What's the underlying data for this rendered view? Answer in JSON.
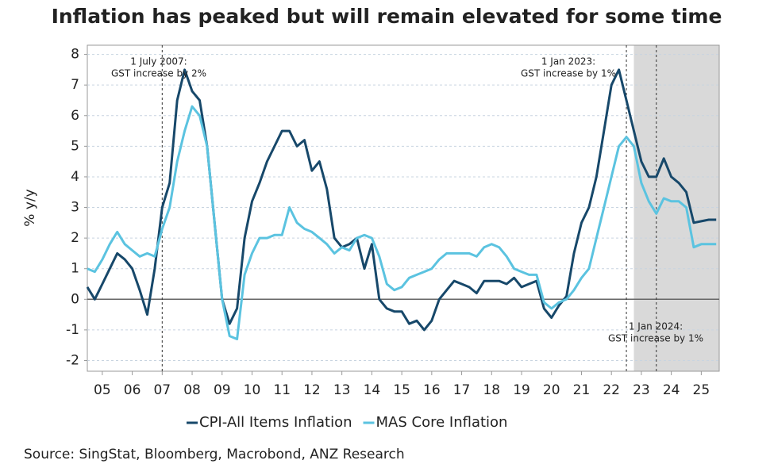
{
  "chart_data": {
    "type": "line",
    "title": "Inflation has peaked but will remain elevated for some time",
    "y_label": "% y/y",
    "source": "Source: SingStat, Bloomberg, Macrobond, ANZ Research",
    "x": [
      2005,
      2005.25,
      2005.5,
      2005.75,
      2006,
      2006.25,
      2006.5,
      2006.75,
      2007,
      2007.25,
      2007.5,
      2007.75,
      2008,
      2008.25,
      2008.5,
      2008.75,
      2009,
      2009.25,
      2009.5,
      2009.75,
      2010,
      2010.25,
      2010.5,
      2010.75,
      2011,
      2011.25,
      2011.5,
      2011.75,
      2012,
      2012.25,
      2012.5,
      2012.75,
      2013,
      2013.25,
      2013.5,
      2013.75,
      2014,
      2014.25,
      2014.5,
      2014.75,
      2015,
      2015.25,
      2015.5,
      2015.75,
      2016,
      2016.25,
      2016.5,
      2016.75,
      2017,
      2017.25,
      2017.5,
      2017.75,
      2018,
      2018.25,
      2018.5,
      2018.75,
      2019,
      2019.25,
      2019.5,
      2019.75,
      2020,
      2020.25,
      2020.5,
      2020.75,
      2021,
      2021.25,
      2021.5,
      2021.75,
      2022,
      2022.25,
      2022.5,
      2022.75,
      2023,
      2023.25,
      2023.5,
      2023.75,
      2024,
      2024.25,
      2024.5,
      2024.75,
      2025,
      2025.25,
      2025.5,
      2025.75,
      2026
    ],
    "series": [
      {
        "name": "CPI-All Items Inflation",
        "color": "#17486a",
        "values": [
          0.4,
          0.0,
          0.5,
          1.0,
          1.5,
          1.3,
          1.0,
          0.3,
          -0.5,
          1.0,
          3.0,
          3.8,
          6.5,
          7.5,
          6.8,
          6.5,
          5.0,
          2.5,
          0.0,
          -0.8,
          -0.3,
          2.0,
          3.2,
          3.8,
          4.5,
          5.0,
          5.5,
          5.5,
          5.0,
          5.2,
          4.2,
          4.5,
          3.6,
          2.0,
          1.7,
          1.8,
          2.0,
          1.0,
          1.8,
          0.0,
          -0.3,
          -0.4,
          -0.4,
          -0.8,
          -0.7,
          -1.0,
          -0.7,
          0.0,
          0.3,
          0.6,
          0.5,
          0.4,
          0.2,
          0.6,
          0.6,
          0.6,
          0.5,
          0.7,
          0.4,
          0.5,
          0.6,
          -0.3,
          -0.6,
          -0.2,
          0.1,
          1.5,
          2.5,
          3.0,
          4.0,
          5.5,
          7.0,
          7.5,
          6.5,
          5.5,
          4.5,
          4.0,
          4.0,
          4.6,
          4.0,
          3.8,
          3.5,
          2.5,
          2.55,
          2.6,
          2.6
        ]
      },
      {
        "name": "MAS Core Inflation",
        "color": "#5bc3e0",
        "values": [
          1.0,
          0.9,
          1.3,
          1.8,
          2.2,
          1.8,
          1.6,
          1.4,
          1.5,
          1.4,
          2.3,
          3.0,
          4.5,
          5.5,
          6.3,
          6.0,
          5.0,
          2.5,
          0.0,
          -1.2,
          -1.3,
          0.8,
          1.5,
          2.0,
          2.0,
          2.1,
          2.1,
          3.0,
          2.5,
          2.3,
          2.2,
          2.0,
          1.8,
          1.5,
          1.7,
          1.6,
          2.0,
          2.1,
          2.0,
          1.4,
          0.5,
          0.3,
          0.4,
          0.7,
          0.8,
          0.9,
          1.0,
          1.3,
          1.5,
          1.5,
          1.5,
          1.5,
          1.4,
          1.7,
          1.8,
          1.7,
          1.4,
          1.0,
          0.9,
          0.8,
          0.8,
          -0.1,
          -0.3,
          -0.1,
          0.0,
          0.3,
          0.7,
          1.0,
          2.0,
          3.0,
          4.0,
          5.0,
          5.3,
          5.0,
          3.8,
          3.2,
          2.8,
          3.3,
          3.2,
          3.2,
          3.0,
          1.7,
          1.8,
          1.8,
          1.8
        ]
      }
    ],
    "xlim": [
      2005,
      2026.1
    ],
    "xticks": [
      {
        "value": 2005.5,
        "label": "05"
      },
      {
        "value": 2006.5,
        "label": "06"
      },
      {
        "value": 2007.5,
        "label": "07"
      },
      {
        "value": 2008.5,
        "label": "08"
      },
      {
        "value": 2009.5,
        "label": "09"
      },
      {
        "value": 2010.5,
        "label": "10"
      },
      {
        "value": 2011.5,
        "label": "11"
      },
      {
        "value": 2012.5,
        "label": "12"
      },
      {
        "value": 2013.5,
        "label": "13"
      },
      {
        "value": 2014.5,
        "label": "14"
      },
      {
        "value": 2015.5,
        "label": "15"
      },
      {
        "value": 2016.5,
        "label": "16"
      },
      {
        "value": 2017.5,
        "label": "17"
      },
      {
        "value": 2018.5,
        "label": "18"
      },
      {
        "value": 2019.5,
        "label": "19"
      },
      {
        "value": 2020.5,
        "label": "20"
      },
      {
        "value": 2021.5,
        "label": "21"
      },
      {
        "value": 2022.5,
        "label": "22"
      },
      {
        "value": 2023.5,
        "label": "23"
      },
      {
        "value": 2024.5,
        "label": "24"
      },
      {
        "value": 2025.5,
        "label": "25"
      }
    ],
    "ylim": [
      -2.35,
      8.3
    ],
    "yticks": [
      -2,
      -1,
      0,
      1,
      2,
      3,
      4,
      5,
      6,
      7,
      8
    ],
    "grid": true,
    "legend": "bottom",
    "shade_start": 2023.25,
    "vlines": [
      2007.5,
      2023,
      2024
    ],
    "annotations": [
      {
        "lines": [
          "1 July 2007:",
          "GST increase by 2%"
        ]
      },
      {
        "lines": [
          "1 Jan 2023:",
          "GST increase by 1%"
        ]
      },
      {
        "lines": [
          "1 Jan 2024:",
          "GST increase by 1%"
        ]
      }
    ]
  }
}
